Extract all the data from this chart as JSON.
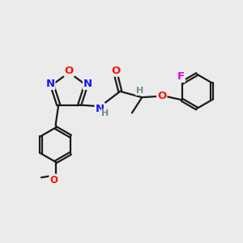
{
  "bg_color": "#ebebeb",
  "bond_color": "#1a1a1a",
  "atom_colors": {
    "C": "#1a1a1a",
    "N": "#1414ff",
    "O": "#ff1400",
    "F": "#e800e8",
    "H": "#6b8e8e"
  },
  "bond_width": 1.6,
  "font_size_atom": 9.5,
  "font_size_small": 8.0,
  "fig_w": 3.0,
  "fig_h": 3.0,
  "dpi": 100
}
